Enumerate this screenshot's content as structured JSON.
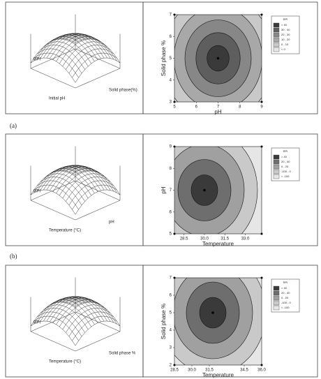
{
  "panel_labels": [
    "(a)",
    "(b)"
  ],
  "chart_data": [
    {
      "type": "surface3d",
      "zlabel": "RPI",
      "xlabel": "Initial pH",
      "ylabel": "Solid phase(%)"
    },
    {
      "type": "contour",
      "xlabel": "pH",
      "ylabel": "Solid phase %",
      "xlim": [
        5,
        9
      ],
      "ylim": [
        3,
        7
      ],
      "xticks": [
        5,
        6,
        7,
        8,
        9
      ],
      "yticks": [
        3,
        4,
        5,
        6,
        7
      ],
      "legend_title": "RPI",
      "levels": [
        {
          "label": "< 0",
          "color": "#e6e6e6"
        },
        {
          "label": "0 - 10",
          "color": "#c9c9c9"
        },
        {
          "label": "10 - 20",
          "color": "#a8a8a8"
        },
        {
          "label": "20 - 30",
          "color": "#878787"
        },
        {
          "label": "30 - 40",
          "color": "#5e5e5e"
        },
        {
          "label": "> 40",
          "color": "#3a3a3a"
        }
      ],
      "optimum": {
        "x": 7,
        "y": 5
      }
    },
    {
      "type": "surface3d",
      "zlabel": "RPI",
      "xlabel": "Temperature (°C)",
      "ylabel": "pH"
    },
    {
      "type": "contour",
      "xlabel": "Temperature",
      "ylabel": "pH",
      "xlim": [
        27.8,
        34.2
      ],
      "ylim": [
        5,
        9
      ],
      "xticks": [
        28.5,
        {
          "value": 30,
          "label": "30.0"
        },
        31.5,
        {
          "value": 33,
          "label": "33.0"
        }
      ],
      "yticks": [
        5,
        6,
        7,
        8,
        9
      ],
      "legend_title": "RPI",
      "levels": [
        {
          "label": "< -100",
          "color": "#e6e6e6"
        },
        {
          "label": "-100 - 0",
          "color": "#c9c9c9"
        },
        {
          "label": "0 - 20",
          "color": "#a0a0a0"
        },
        {
          "label": "20 - 40",
          "color": "#6e6e6e"
        },
        {
          "label": "> 40",
          "color": "#3a3a3a"
        }
      ],
      "optimum": {
        "x": 30,
        "y": 7
      }
    },
    {
      "type": "surface3d",
      "zlabel": "RPI",
      "xlabel": "Temperature (°C)",
      "ylabel": "Solid phase %"
    },
    {
      "type": "contour",
      "xlabel": "Temperature",
      "ylabel": "Solid phase %",
      "xlim": [
        28.5,
        36
      ],
      "ylim": [
        2,
        7
      ],
      "xticks": [
        28.5,
        {
          "value": 30,
          "label": "30.0"
        },
        31.5,
        34.5,
        {
          "value": 36,
          "label": "36.0"
        }
      ],
      "yticks": [
        2,
        3,
        4,
        5,
        6,
        7
      ],
      "legend_title": "RPI",
      "levels": [
        {
          "label": "< -100",
          "color": "#e6e6e6"
        },
        {
          "label": "-100 - 0",
          "color": "#c9c9c9"
        },
        {
          "label": "0 - 20",
          "color": "#a0a0a0"
        },
        {
          "label": "20 - 40",
          "color": "#6e6e6e"
        },
        {
          "label": "> 40",
          "color": "#3a3a3a"
        }
      ],
      "optimum": {
        "x": 31.8,
        "y": 5
      }
    }
  ]
}
